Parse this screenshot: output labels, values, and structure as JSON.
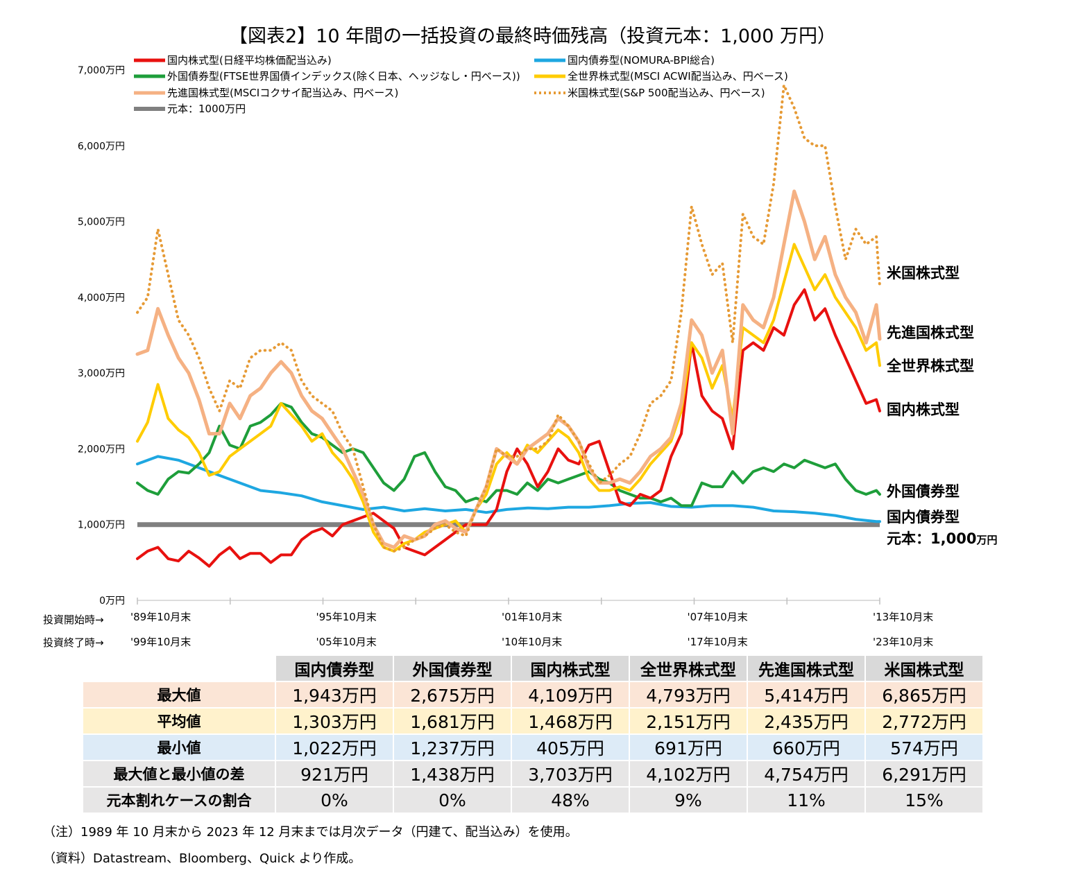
{
  "chart_data": {
    "type": "line",
    "title": "【図表2】10 年間の一括投資の最終時価残高（投資元本：1,000 万円）",
    "y_ticks": [
      "0万円",
      "1,000万円",
      "2,000万円",
      "3,000万円",
      "4,000万円",
      "5,000万円",
      "6,000万円",
      "7,000万円"
    ],
    "ylim": [
      0,
      7000
    ],
    "x_start_labels": [
      "'89年10月末",
      "'95年10月末",
      "'01年10月末",
      "'07年10月末",
      "'13年10月末"
    ],
    "x_end_labels": [
      "'99年10月末",
      "'05年10月末",
      "'10年10月末",
      "'17年10月末",
      "'23年10月末"
    ],
    "row_label_start": "投資開始時→",
    "row_label_end": "投資終了時→",
    "legend_position": "top-left",
    "grid": false,
    "colors": {
      "domestic_stock": "#e8110f",
      "domestic_bond": "#1ea7e1",
      "foreign_bond": "#1e9e3a",
      "world_stock": "#ffcc00",
      "developed_stock": "#f5b183",
      "us_stock": "#e69a35",
      "principal": "#808080"
    },
    "series": [
      {
        "key": "domestic_stock",
        "name": "国内株式型(日経平均株価配当込み)",
        "end_label": "国内株式型",
        "x": [
          0,
          6,
          12,
          18,
          24,
          30,
          36,
          42,
          48,
          54,
          60,
          66,
          72,
          78,
          84,
          90,
          96,
          102,
          108,
          114,
          120,
          126,
          132,
          138,
          144,
          150,
          156,
          162,
          168,
          174,
          180,
          186,
          192,
          198,
          204,
          210,
          216,
          222,
          228,
          234,
          240,
          246,
          252,
          258,
          264,
          270,
          276,
          282,
          288,
          294,
          300,
          306,
          312,
          318,
          324,
          330,
          336,
          342,
          348,
          354,
          360,
          366,
          372,
          378,
          384,
          390,
          396,
          402,
          408,
          414,
          420,
          426,
          432,
          434
        ],
        "values": [
          550,
          650,
          700,
          550,
          520,
          650,
          560,
          450,
          600,
          700,
          550,
          620,
          620,
          500,
          600,
          600,
          800,
          900,
          950,
          850,
          1000,
          1050,
          1100,
          1150,
          1050,
          950,
          700,
          650,
          600,
          700,
          800,
          900,
          1000,
          1000,
          1000,
          1200,
          1700,
          2000,
          1800,
          1500,
          1700,
          2000,
          1850,
          1800,
          2050,
          2100,
          1700,
          1300,
          1250,
          1400,
          1350,
          1450,
          1900,
          2200,
          3400,
          2700,
          2500,
          2400,
          2000,
          3300,
          3400,
          3300,
          3600,
          3500,
          3900,
          4100,
          3700,
          3850,
          3500,
          3200,
          2900,
          2600,
          2650,
          2500
        ]
      },
      {
        "key": "domestic_bond",
        "name": "国内債券型(NOMURA-BPI総合)",
        "end_label": "国内債券型",
        "x": [
          0,
          12,
          24,
          36,
          48,
          60,
          72,
          84,
          96,
          108,
          120,
          132,
          144,
          156,
          168,
          180,
          192,
          204,
          216,
          228,
          240,
          252,
          264,
          276,
          288,
          300,
          312,
          324,
          336,
          348,
          360,
          372,
          384,
          396,
          408,
          420,
          432,
          434
        ],
        "values": [
          1800,
          1900,
          1850,
          1750,
          1650,
          1550,
          1450,
          1420,
          1380,
          1300,
          1250,
          1200,
          1230,
          1180,
          1210,
          1180,
          1200,
          1160,
          1200,
          1220,
          1210,
          1230,
          1230,
          1250,
          1280,
          1290,
          1240,
          1230,
          1250,
          1250,
          1230,
          1180,
          1170,
          1150,
          1120,
          1070,
          1040,
          1040
        ]
      },
      {
        "key": "foreign_bond",
        "name": "外国債券型(FTSE世界国債インデックス(除く日本、ヘッジなし・円ベース))",
        "end_label": "外国債券型",
        "x": [
          0,
          6,
          12,
          18,
          24,
          30,
          36,
          42,
          48,
          54,
          60,
          66,
          72,
          78,
          84,
          90,
          96,
          102,
          108,
          114,
          120,
          126,
          132,
          138,
          144,
          150,
          156,
          162,
          168,
          174,
          180,
          186,
          192,
          198,
          204,
          210,
          216,
          222,
          228,
          234,
          240,
          246,
          252,
          258,
          264,
          270,
          276,
          282,
          288,
          294,
          300,
          306,
          312,
          318,
          324,
          330,
          336,
          342,
          348,
          354,
          360,
          366,
          372,
          378,
          384,
          390,
          396,
          402,
          408,
          414,
          420,
          426,
          432,
          434
        ],
        "values": [
          1550,
          1450,
          1400,
          1600,
          1700,
          1680,
          1800,
          1950,
          2300,
          2050,
          2000,
          2300,
          2350,
          2450,
          2600,
          2550,
          2350,
          2200,
          2150,
          2050,
          1950,
          2000,
          1950,
          1750,
          1550,
          1450,
          1600,
          1900,
          1950,
          1700,
          1500,
          1450,
          1300,
          1350,
          1300,
          1450,
          1450,
          1400,
          1550,
          1450,
          1600,
          1550,
          1600,
          1650,
          1700,
          1600,
          1550,
          1450,
          1400,
          1350,
          1350,
          1300,
          1350,
          1250,
          1250,
          1550,
          1500,
          1500,
          1700,
          1550,
          1700,
          1750,
          1700,
          1800,
          1750,
          1850,
          1800,
          1750,
          1800,
          1600,
          1450,
          1400,
          1450,
          1400
        ]
      },
      {
        "key": "world_stock",
        "name": "全世界株式型(MSCI ACWI配当込み、円ベース)",
        "end_label": "全世界株式型",
        "x": [
          0,
          6,
          12,
          18,
          24,
          30,
          36,
          42,
          48,
          54,
          60,
          66,
          72,
          78,
          84,
          90,
          96,
          102,
          108,
          114,
          120,
          126,
          132,
          138,
          144,
          150,
          156,
          162,
          168,
          174,
          180,
          186,
          192,
          198,
          204,
          210,
          216,
          222,
          228,
          234,
          240,
          246,
          252,
          258,
          264,
          270,
          276,
          282,
          288,
          294,
          300,
          306,
          312,
          318,
          324,
          330,
          336,
          342,
          348,
          354,
          360,
          366,
          372,
          378,
          384,
          390,
          396,
          402,
          408,
          414,
          420,
          426,
          432,
          434
        ],
        "values": [
          2100,
          2350,
          2850,
          2400,
          2250,
          2150,
          1950,
          1650,
          1700,
          1900,
          2000,
          2100,
          2200,
          2300,
          2600,
          2450,
          2300,
          2100,
          2200,
          1950,
          1800,
          1600,
          1300,
          900,
          700,
          650,
          750,
          800,
          900,
          950,
          1000,
          1050,
          900,
          1200,
          1400,
          1800,
          1950,
          1800,
          2050,
          1950,
          2100,
          2250,
          2150,
          1950,
          1600,
          1450,
          1450,
          1500,
          1450,
          1600,
          1800,
          1950,
          2100,
          2500,
          3400,
          3200,
          2800,
          3100,
          2400,
          3600,
          3500,
          3400,
          3700,
          4200,
          4700,
          4400,
          4100,
          4300,
          4000,
          3800,
          3600,
          3300,
          3400,
          3100
        ]
      },
      {
        "key": "developed_stock",
        "name": "先進国株式型(MSCIコクサイ配当込み、円ベース)",
        "end_label": "先進国株式型",
        "x": [
          0,
          6,
          12,
          18,
          24,
          30,
          36,
          42,
          48,
          54,
          60,
          66,
          72,
          78,
          84,
          90,
          96,
          102,
          108,
          114,
          120,
          126,
          132,
          138,
          144,
          150,
          156,
          162,
          168,
          174,
          180,
          186,
          192,
          198,
          204,
          210,
          216,
          222,
          228,
          234,
          240,
          246,
          252,
          258,
          264,
          270,
          276,
          282,
          288,
          294,
          300,
          306,
          312,
          318,
          324,
          330,
          336,
          342,
          348,
          354,
          360,
          366,
          372,
          378,
          384,
          390,
          396,
          402,
          408,
          414,
          420,
          426,
          432,
          434
        ],
        "values": [
          3250,
          3300,
          3850,
          3500,
          3200,
          3000,
          2650,
          2200,
          2200,
          2600,
          2400,
          2700,
          2800,
          3000,
          3150,
          3000,
          2700,
          2500,
          2400,
          2200,
          2000,
          1700,
          1400,
          1000,
          750,
          700,
          850,
          800,
          850,
          1000,
          1050,
          950,
          900,
          1200,
          1500,
          2000,
          1900,
          1800,
          2000,
          2100,
          2200,
          2400,
          2300,
          2100,
          1750,
          1550,
          1550,
          1600,
          1550,
          1700,
          1900,
          2000,
          2150,
          2600,
          3700,
          3500,
          3000,
          3300,
          2200,
          3900,
          3700,
          3600,
          4000,
          4700,
          5400,
          5000,
          4500,
          4800,
          4300,
          4000,
          3800,
          3400,
          3900,
          3450
        ]
      },
      {
        "key": "us_stock",
        "name": "米国株式型(S&P 500配当込み、円ベース)",
        "end_label": "米国株式型",
        "x": [
          0,
          6,
          12,
          18,
          24,
          30,
          36,
          42,
          48,
          54,
          60,
          66,
          72,
          78,
          84,
          90,
          96,
          102,
          108,
          114,
          120,
          126,
          132,
          138,
          144,
          150,
          156,
          162,
          168,
          174,
          180,
          186,
          192,
          198,
          204,
          210,
          216,
          222,
          228,
          234,
          240,
          246,
          252,
          258,
          264,
          270,
          276,
          282,
          288,
          294,
          300,
          306,
          312,
          318,
          324,
          330,
          336,
          342,
          348,
          354,
          360,
          366,
          372,
          378,
          384,
          390,
          396,
          402,
          408,
          414,
          420,
          426,
          432,
          434
        ],
        "values": [
          3800,
          4000,
          4900,
          4300,
          3700,
          3500,
          3200,
          2800,
          2500,
          2900,
          2800,
          3200,
          3300,
          3300,
          3400,
          3300,
          2900,
          2700,
          2600,
          2500,
          2200,
          2000,
          1500,
          1000,
          700,
          650,
          700,
          800,
          850,
          950,
          1000,
          900,
          850,
          1200,
          1500,
          2000,
          1900,
          1900,
          2000,
          2000,
          2100,
          2450,
          2300,
          2100,
          1800,
          1550,
          1650,
          1800,
          1900,
          2200,
          2600,
          2700,
          2900,
          3800,
          5200,
          4700,
          4300,
          4450,
          3400,
          5100,
          4800,
          4700,
          5500,
          6800,
          6500,
          6100,
          6000,
          6000,
          5200,
          4500,
          4900,
          4700,
          4800,
          4150
        ]
      },
      {
        "key": "principal",
        "name": "元本：1000万円",
        "end_label": "元本：1,000",
        "x": [
          0,
          434
        ],
        "values": [
          1000,
          1000
        ]
      }
    ],
    "end_label_unit": "万円",
    "table": {
      "columns": [
        "国内債券型",
        "外国債券型",
        "国内株式型",
        "全世界株式型",
        "先進国株式型",
        "米国株式型"
      ],
      "rows": [
        {
          "label": "最大値",
          "values": [
            "1,943万円",
            "2,675万円",
            "4,109万円",
            "4,793万円",
            "5,414万円",
            "6,865万円"
          ]
        },
        {
          "label": "平均値",
          "values": [
            "1,303万円",
            "1,681万円",
            "1,468万円",
            "2,151万円",
            "2,435万円",
            "2,772万円"
          ]
        },
        {
          "label": "最小値",
          "values": [
            "1,022万円",
            "1,237万円",
            "405万円",
            "691万円",
            "660万円",
            "574万円"
          ]
        },
        {
          "label": "最大値と最小値の差",
          "values": [
            "921万円",
            "1,438万円",
            "3,703万円",
            "4,102万円",
            "4,754万円",
            "6,291万円"
          ]
        },
        {
          "label": "元本割れケースの割合",
          "values": [
            "0%",
            "0%",
            "48%",
            "9%",
            "11%",
            "15%"
          ]
        }
      ]
    }
  },
  "notes": {
    "note": "（注）1989 年 10 月末から 2023 年 12 月末までは月次データ（円建て、配当込み）を使用。",
    "source": "（資料）Datastream、Bloomberg、Quick より作成。"
  }
}
